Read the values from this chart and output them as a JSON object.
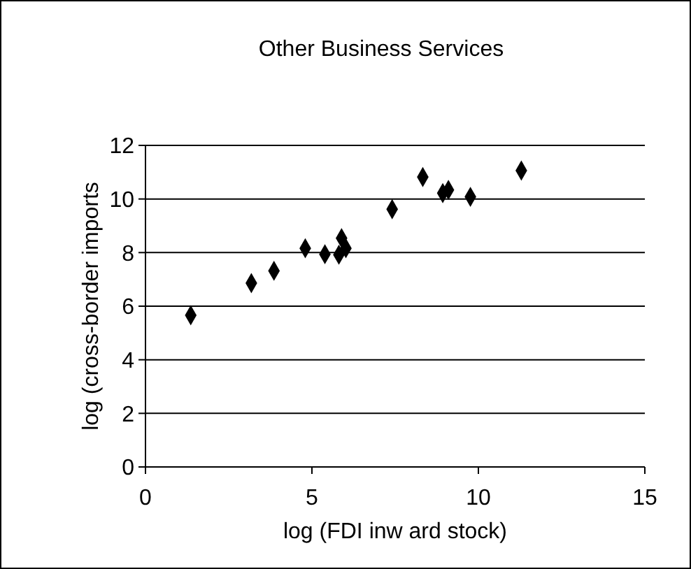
{
  "chart_data": {
    "type": "scatter",
    "title": "Other Business Services",
    "xlabel": "log (FDI inw ard stock)",
    "ylabel": "log (cross-border imports",
    "x": [
      1.36,
      3.18,
      3.86,
      4.8,
      5.39,
      5.81,
      5.89,
      6.02,
      7.41,
      8.33,
      8.93,
      9.1,
      9.76,
      11.29
    ],
    "values": [
      5.66,
      6.86,
      7.32,
      8.16,
      7.94,
      7.92,
      8.54,
      8.16,
      9.62,
      10.82,
      10.22,
      10.34,
      10.08,
      11.06
    ],
    "color": "#000000",
    "marker": "diamond",
    "xlim": [
      0,
      15
    ],
    "xticks": [
      0,
      5,
      10,
      15
    ],
    "ylim": [
      0,
      12
    ],
    "yticks": [
      0,
      2,
      4,
      6,
      8,
      10,
      12
    ],
    "grid": "y"
  }
}
